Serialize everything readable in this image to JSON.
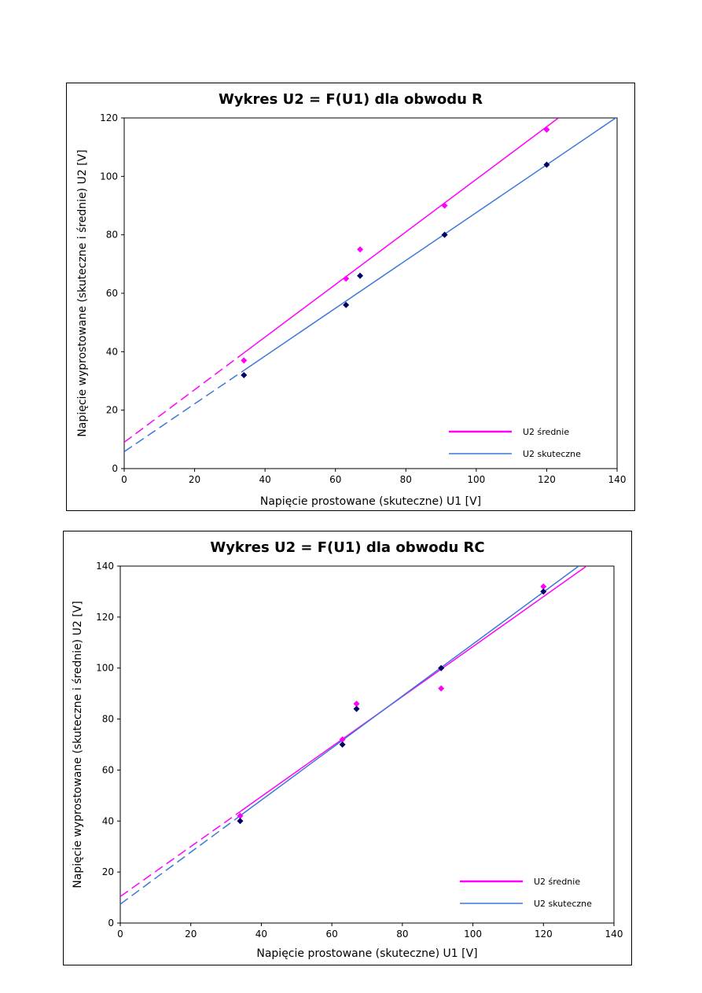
{
  "colors": {
    "srednie": "#ff00ff",
    "skuteczne": "#3c78d8",
    "marker_skuteczne": "#000066"
  },
  "chart_data": [
    {
      "type": "scatter",
      "title": "Wykres U2 = F(U1) dla obwodu R",
      "xlabel": "Napięcie prostowane (skuteczne) U1 [V]",
      "ylabel": "Napięcie wyprostowane (skuteczne i średnie) U2 [V]",
      "xlim": [
        0,
        140
      ],
      "ylim": [
        0,
        120
      ],
      "xticks": [
        0,
        20,
        40,
        60,
        80,
        100,
        120,
        140
      ],
      "yticks": [
        0,
        20,
        40,
        60,
        80,
        100,
        120
      ],
      "series": [
        {
          "name": "U2 średnie",
          "color": "#ff00ff",
          "marker_color": "#ff00ff",
          "x": [
            34,
            63,
            67,
            91,
            120
          ],
          "y": [
            37,
            65,
            75,
            90,
            116
          ],
          "trend": {
            "slope": 0.9,
            "intercept": 9,
            "solid_from": 34,
            "x_end": 123.3
          }
        },
        {
          "name": "U2 skuteczne",
          "color": "#3c78d8",
          "marker_color": "#000066",
          "x": [
            34,
            63,
            67,
            91,
            120
          ],
          "y": [
            32,
            56,
            66,
            80,
            104
          ],
          "trend": {
            "slope": 0.818,
            "intercept": 5.8,
            "solid_from": 34,
            "x_end": 140
          }
        }
      ],
      "legend": [
        "U2 średnie",
        "U2 skuteczne"
      ]
    },
    {
      "type": "scatter",
      "title": "Wykres U2 = F(U1) dla obwodu RC",
      "xlabel": "Napięcie prostowane (skuteczne) U1 [V]",
      "ylabel": "Napięcie wyprostowane (skuteczne i średnie) U2 [V]",
      "xlim": [
        0,
        140
      ],
      "ylim": [
        0,
        140
      ],
      "xticks": [
        0,
        20,
        40,
        60,
        80,
        100,
        120,
        140
      ],
      "yticks": [
        0,
        20,
        40,
        60,
        80,
        100,
        120,
        140
      ],
      "series": [
        {
          "name": "U2 średnie",
          "color": "#ff00ff",
          "marker_color": "#ff00ff",
          "x": [
            34,
            63,
            67,
            91,
            120
          ],
          "y": [
            42,
            72,
            86,
            92,
            132
          ],
          "trend": {
            "slope": 0.98,
            "intercept": 10.4,
            "solid_from": 34,
            "x_end": 132
          }
        },
        {
          "name": "U2 skuteczne",
          "color": "#3c78d8",
          "marker_color": "#000066",
          "x": [
            34,
            63,
            67,
            91,
            120
          ],
          "y": [
            40,
            70,
            84,
            100,
            130
          ],
          "trend": {
            "slope": 1.02,
            "intercept": 7.4,
            "solid_from": 34,
            "x_end": 130
          }
        }
      ],
      "legend": [
        "U2 średnie",
        "U2 skuteczne"
      ]
    }
  ]
}
